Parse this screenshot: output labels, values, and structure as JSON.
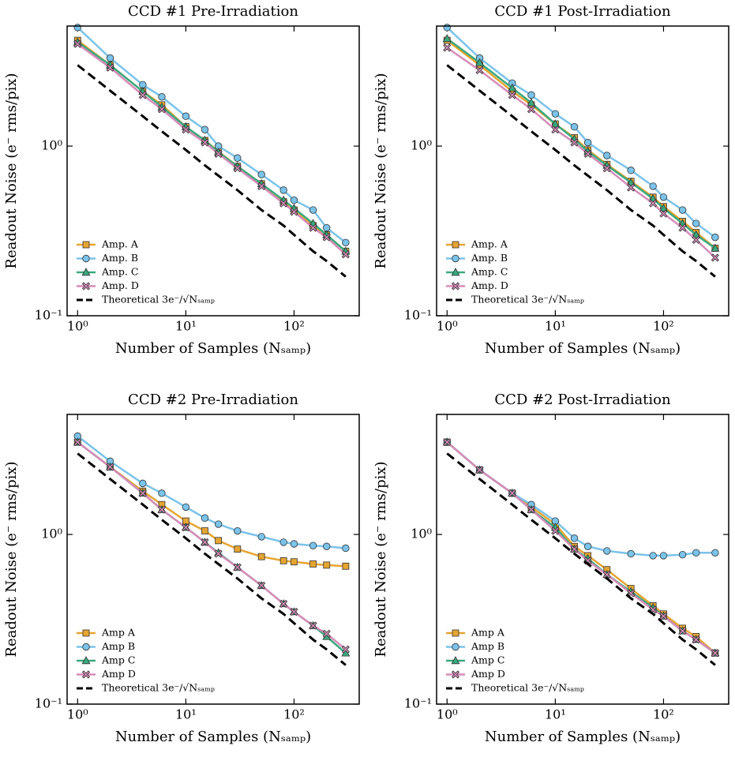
{
  "chart_data": [
    {
      "type": "line",
      "title": "CCD #1 Pre-Irradiation",
      "xlabel": "Number of Samples (Nₛₐₘₚ)",
      "ylabel": "Readout Noise (e⁻ rms/pix)",
      "xscale": "log",
      "yscale": "log",
      "legend": "lower left",
      "xlim": [
        0.8,
        400
      ],
      "ylim": [
        0.1,
        5.1
      ],
      "xticks": [
        {
          "value": 1,
          "label": "10⁰"
        },
        {
          "value": 10,
          "label": "10¹"
        },
        {
          "value": 100,
          "label": "10²"
        }
      ],
      "yticks": [
        {
          "value": 0.1,
          "label": "10⁻¹"
        },
        {
          "value": 1,
          "label": "10⁰"
        }
      ],
      "x": [
        1,
        2,
        4,
        6,
        10,
        15,
        20,
        30,
        50,
        80,
        100,
        150,
        200,
        300
      ],
      "series": [
        {
          "name": "Amp. A",
          "color": "#e6a532",
          "marker": "square",
          "values": [
            4.2,
            3.0,
            2.1,
            1.75,
            1.3,
            1.08,
            0.93,
            0.76,
            0.6,
            0.47,
            0.42,
            0.34,
            0.3,
            0.24
          ]
        },
        {
          "name": "Amp. B",
          "color": "#7ac3ea",
          "marker": "circle",
          "values": [
            5.0,
            3.3,
            2.3,
            1.95,
            1.5,
            1.25,
            1.0,
            0.85,
            0.68,
            0.55,
            0.48,
            0.42,
            0.33,
            0.27
          ]
        },
        {
          "name": "Amp. C",
          "color": "#3aa97e",
          "marker": "triangle",
          "values": [
            4.1,
            3.0,
            2.1,
            1.7,
            1.3,
            1.08,
            0.92,
            0.76,
            0.6,
            0.48,
            0.43,
            0.35,
            0.3,
            0.24
          ]
        },
        {
          "name": "Amp. D",
          "color": "#d68bb9",
          "marker": "x",
          "values": [
            4.0,
            2.9,
            2.0,
            1.65,
            1.25,
            1.05,
            0.9,
            0.74,
            0.58,
            0.46,
            0.41,
            0.33,
            0.29,
            0.23
          ]
        },
        {
          "name": "Theoretical 3e⁻/√Nₛₐₘₚ",
          "color": "#000000",
          "dash": true,
          "values": [
            3.0,
            2.12,
            1.5,
            1.22,
            0.95,
            0.77,
            0.67,
            0.55,
            0.42,
            0.34,
            0.3,
            0.24,
            0.21,
            0.17
          ]
        }
      ]
    },
    {
      "type": "line",
      "title": "CCD #1 Post-Irradiation",
      "xlabel": "Number of Samples (Nₛₐₘₚ)",
      "ylabel": "Readout Noise (e⁻ rms/pix)",
      "xscale": "log",
      "yscale": "log",
      "legend": "lower left",
      "xlim": [
        0.8,
        400
      ],
      "ylim": [
        0.1,
        5.1
      ],
      "xticks": [
        {
          "value": 1,
          "label": "10⁰"
        },
        {
          "value": 10,
          "label": "10¹"
        },
        {
          "value": 100,
          "label": "10²"
        }
      ],
      "yticks": [
        {
          "value": 0.1,
          "label": "10⁻¹"
        },
        {
          "value": 1,
          "label": "10⁰"
        }
      ],
      "x": [
        1,
        2,
        4,
        6,
        10,
        15,
        20,
        30,
        50,
        80,
        100,
        150,
        200,
        300
      ],
      "series": [
        {
          "name": "Amp. A",
          "color": "#e6a532",
          "marker": "square",
          "values": [
            4.2,
            3.0,
            2.1,
            1.75,
            1.35,
            1.12,
            0.95,
            0.78,
            0.62,
            0.5,
            0.44,
            0.36,
            0.31,
            0.25
          ]
        },
        {
          "name": "Amp. B",
          "color": "#7ac3ea",
          "marker": "circle",
          "values": [
            5.0,
            3.3,
            2.35,
            2.0,
            1.55,
            1.3,
            1.05,
            0.88,
            0.72,
            0.58,
            0.5,
            0.42,
            0.35,
            0.29
          ]
        },
        {
          "name": "Amp. C",
          "color": "#3aa97e",
          "marker": "triangle",
          "values": [
            4.3,
            3.1,
            2.2,
            1.8,
            1.35,
            1.1,
            0.93,
            0.77,
            0.61,
            0.49,
            0.43,
            0.35,
            0.3,
            0.25
          ]
        },
        {
          "name": "Amp. D",
          "color": "#d68bb9",
          "marker": "x",
          "values": [
            3.8,
            2.8,
            2.0,
            1.65,
            1.25,
            1.05,
            0.9,
            0.74,
            0.57,
            0.46,
            0.4,
            0.33,
            0.28,
            0.22
          ]
        },
        {
          "name": "Theoretical 3e⁻/√Nₛₐₘₚ",
          "color": "#000000",
          "dash": true,
          "values": [
            3.0,
            2.12,
            1.5,
            1.22,
            0.95,
            0.77,
            0.67,
            0.55,
            0.42,
            0.34,
            0.3,
            0.24,
            0.21,
            0.17
          ]
        }
      ]
    },
    {
      "type": "line",
      "title": "CCD #2 Pre-Irradiation",
      "xlabel": "Number of Samples (Nₛₐₘₚ)",
      "ylabel": "Readout Noise (e⁻ rms/pix)",
      "xscale": "log",
      "yscale": "log",
      "legend": "lower left",
      "xlim": [
        0.8,
        400
      ],
      "ylim": [
        0.1,
        5.1
      ],
      "xticks": [
        {
          "value": 1,
          "label": "10⁰"
        },
        {
          "value": 10,
          "label": "10¹"
        },
        {
          "value": 100,
          "label": "10²"
        }
      ],
      "yticks": [
        {
          "value": 0.1,
          "label": "10⁻¹"
        },
        {
          "value": 1,
          "label": "10⁰"
        }
      ],
      "x": [
        1,
        2,
        4,
        6,
        10,
        15,
        20,
        30,
        50,
        80,
        100,
        150,
        200,
        300
      ],
      "series": [
        {
          "name": "Amp A",
          "color": "#e6a532",
          "marker": "square",
          "values": [
            3.5,
            2.5,
            1.8,
            1.5,
            1.2,
            1.05,
            0.92,
            0.82,
            0.74,
            0.7,
            0.69,
            0.67,
            0.66,
            0.65
          ]
        },
        {
          "name": "Amp B",
          "color": "#7ac3ea",
          "marker": "circle",
          "values": [
            3.8,
            2.7,
            2.0,
            1.75,
            1.45,
            1.25,
            1.15,
            1.05,
            0.97,
            0.9,
            0.88,
            0.86,
            0.85,
            0.83
          ]
        },
        {
          "name": "Amp C",
          "color": "#3aa97e",
          "marker": "triangle",
          "values": [
            3.5,
            2.5,
            1.75,
            1.4,
            1.1,
            0.9,
            0.78,
            0.64,
            0.5,
            0.39,
            0.35,
            0.29,
            0.25,
            0.2
          ]
        },
        {
          "name": "Amp D",
          "color": "#d68bb9",
          "marker": "x",
          "values": [
            3.5,
            2.5,
            1.75,
            1.4,
            1.1,
            0.9,
            0.77,
            0.64,
            0.5,
            0.39,
            0.35,
            0.29,
            0.26,
            0.21
          ]
        },
        {
          "name": "Theoretical 3e⁻/√Nₛₐₘₚ",
          "color": "#000000",
          "dash": true,
          "values": [
            3.0,
            2.12,
            1.5,
            1.22,
            0.95,
            0.77,
            0.67,
            0.55,
            0.42,
            0.34,
            0.3,
            0.24,
            0.21,
            0.17
          ]
        }
      ]
    },
    {
      "type": "line",
      "title": "CCD #2 Post-Irradiation",
      "xlabel": "Number of Samples (Nₛₐₘₚ)",
      "ylabel": "Readout Noise (e⁻ rms/pix)",
      "xscale": "log",
      "yscale": "log",
      "legend": "lower left",
      "xlim": [
        0.8,
        400
      ],
      "ylim": [
        0.1,
        5.1
      ],
      "xticks": [
        {
          "value": 1,
          "label": "10⁰"
        },
        {
          "value": 10,
          "label": "10¹"
        },
        {
          "value": 100,
          "label": "10²"
        }
      ],
      "yticks": [
        {
          "value": 0.1,
          "label": "10⁻¹"
        },
        {
          "value": 1,
          "label": "10⁰"
        }
      ],
      "x": [
        1,
        2,
        4,
        6,
        10,
        15,
        20,
        30,
        50,
        80,
        100,
        150,
        200,
        300
      ],
      "series": [
        {
          "name": "Amp A",
          "color": "#e6a532",
          "marker": "square",
          "values": [
            3.5,
            2.4,
            1.75,
            1.45,
            1.15,
            0.85,
            0.75,
            0.62,
            0.48,
            0.38,
            0.34,
            0.28,
            0.25,
            0.2
          ]
        },
        {
          "name": "Amp B",
          "color": "#7ac3ea",
          "marker": "circle",
          "values": [
            3.5,
            2.4,
            1.75,
            1.5,
            1.2,
            0.95,
            0.85,
            0.8,
            0.77,
            0.75,
            0.75,
            0.76,
            0.78,
            0.78
          ]
        },
        {
          "name": "Amp C",
          "color": "#3aa97e",
          "marker": "triangle",
          "values": [
            3.5,
            2.4,
            1.75,
            1.4,
            1.1,
            0.82,
            0.72,
            0.58,
            0.46,
            0.37,
            0.33,
            0.27,
            0.24,
            0.2
          ]
        },
        {
          "name": "Amp D",
          "color": "#d68bb9",
          "marker": "x",
          "values": [
            3.5,
            2.4,
            1.75,
            1.4,
            1.05,
            0.82,
            0.7,
            0.58,
            0.45,
            0.36,
            0.33,
            0.27,
            0.24,
            0.2
          ]
        },
        {
          "name": "Theoretical 3e⁻/√Nₛₐₘₚ",
          "color": "#000000",
          "dash": true,
          "values": [
            3.0,
            2.12,
            1.5,
            1.22,
            0.95,
            0.77,
            0.67,
            0.55,
            0.42,
            0.34,
            0.3,
            0.24,
            0.21,
            0.17
          ]
        }
      ]
    }
  ]
}
